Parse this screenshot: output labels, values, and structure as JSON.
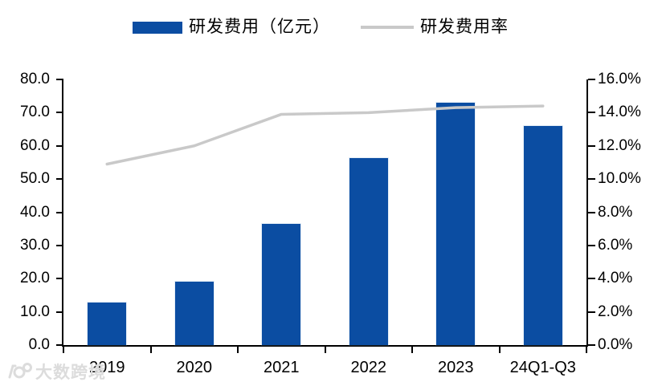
{
  "legend": {
    "items": [
      {
        "label": "研发费用（亿元）",
        "swatch": "bar"
      },
      {
        "label": "研发费用率",
        "swatch": "line"
      }
    ]
  },
  "colors": {
    "bar": "#0B4DA2",
    "bar_edge": "#7FA8D9",
    "line": "#C9C9C9",
    "axis": "#000000",
    "text": "#000000",
    "watermark": "#DCDCDC"
  },
  "watermark": {
    "icon": "dashukuajing-logo",
    "text": "大数跨境"
  },
  "chart_data": {
    "type": "bar",
    "title": "",
    "categories": [
      "2019",
      "2020",
      "2021",
      "2022",
      "2023",
      "24Q1-Q3"
    ],
    "series": [
      {
        "name": "研发费用（亿元）",
        "type": "bar",
        "axis": "left",
        "values": [
          12.8,
          19.0,
          36.6,
          56.3,
          73.0,
          66.0
        ]
      },
      {
        "name": "研发费用率",
        "type": "line",
        "axis": "right",
        "values": [
          10.9,
          12.0,
          13.9,
          14.0,
          14.3,
          14.4
        ]
      }
    ],
    "left_axis": {
      "min": 0,
      "max": 80,
      "step": 10,
      "labels": [
        "0.0",
        "10.0",
        "20.0",
        "30.0",
        "40.0",
        "50.0",
        "60.0",
        "70.0",
        "80.0"
      ]
    },
    "right_axis": {
      "min": 0,
      "max": 16,
      "step": 2,
      "labels": [
        "0.0%",
        "2.0%",
        "4.0%",
        "6.0%",
        "8.0%",
        "10.0%",
        "12.0%",
        "14.0%",
        "16.0%"
      ]
    },
    "grid": false,
    "legend_position": "top"
  }
}
